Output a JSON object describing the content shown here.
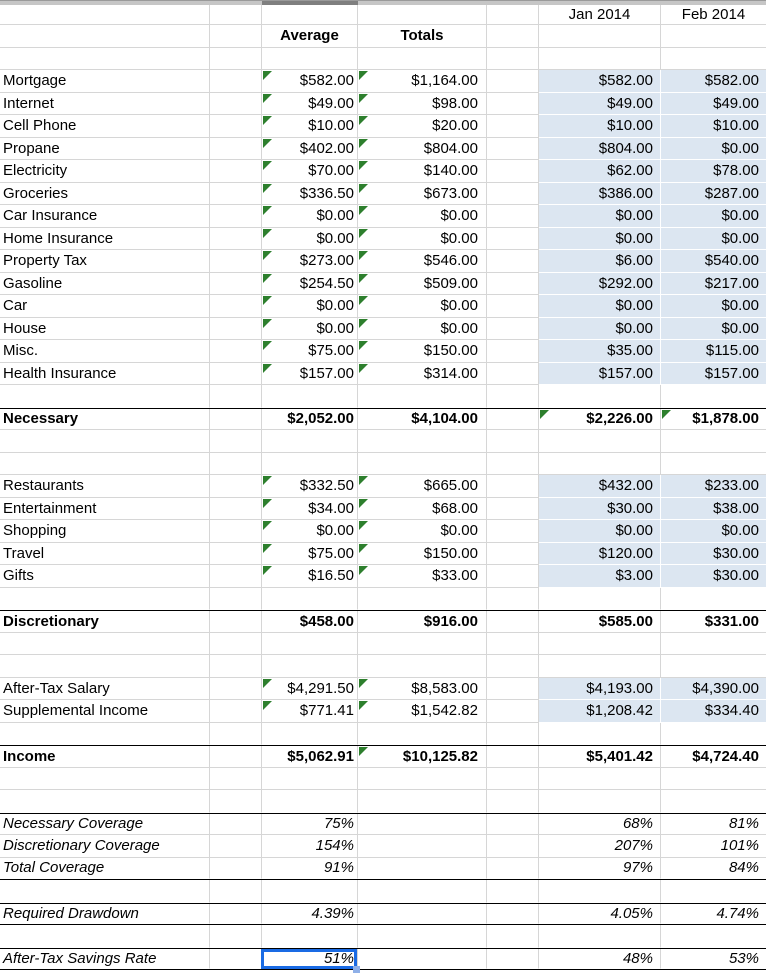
{
  "colors": {
    "grid_line": "#d6d6d6",
    "blue_fill": "#dce6f1",
    "blue_fill_grid": "#ffffff",
    "flag_green": "#2d7f2d",
    "selection_blue": "#1a6be4",
    "fill_handle_blue": "#8fb0e8",
    "header_strip": "#c6c6c6",
    "header_strip_selected": "#7f7f7f",
    "section_border": "#000000",
    "text": "#000000"
  },
  "column_headers": {
    "average": "Average",
    "totals": "Totals",
    "jan": "Jan 2014",
    "feb": "Feb 2014"
  },
  "rows": [
    {
      "id": "month-headers",
      "type": "months-header",
      "cells": {
        "jan": "Jan 2014",
        "feb": "Feb 2014"
      }
    },
    {
      "id": "column-headers",
      "type": "cols-header",
      "cells": {
        "average": "Average",
        "totals": "Totals"
      }
    },
    {
      "id": "blank-1",
      "type": "blank"
    },
    {
      "id": "mortgage",
      "type": "item",
      "cells": {
        "label": "Mortgage",
        "average": "$582.00",
        "totals": "$1,164.00",
        "jan": "$582.00",
        "feb": "$582.00"
      },
      "tri": [
        "average",
        "totals"
      ],
      "blue": true
    },
    {
      "id": "internet",
      "type": "item",
      "cells": {
        "label": "Internet",
        "average": "$49.00",
        "totals": "$98.00",
        "jan": "$49.00",
        "feb": "$49.00"
      },
      "tri": [
        "average",
        "totals"
      ],
      "blue": true
    },
    {
      "id": "cell-phone",
      "type": "item",
      "cells": {
        "label": "Cell Phone",
        "average": "$10.00",
        "totals": "$20.00",
        "jan": "$10.00",
        "feb": "$10.00"
      },
      "tri": [
        "average",
        "totals"
      ],
      "blue": true
    },
    {
      "id": "propane",
      "type": "item",
      "cells": {
        "label": "Propane",
        "average": "$402.00",
        "totals": "$804.00",
        "jan": "$804.00",
        "feb": "$0.00"
      },
      "tri": [
        "average",
        "totals"
      ],
      "blue": true
    },
    {
      "id": "electricity",
      "type": "item",
      "cells": {
        "label": "Electricity",
        "average": "$70.00",
        "totals": "$140.00",
        "jan": "$62.00",
        "feb": "$78.00"
      },
      "tri": [
        "average",
        "totals"
      ],
      "blue": true
    },
    {
      "id": "groceries",
      "type": "item",
      "cells": {
        "label": "Groceries",
        "average": "$336.50",
        "totals": "$673.00",
        "jan": "$386.00",
        "feb": "$287.00"
      },
      "tri": [
        "average",
        "totals"
      ],
      "blue": true
    },
    {
      "id": "car-insurance",
      "type": "item",
      "cells": {
        "label": "Car Insurance",
        "average": "$0.00",
        "totals": "$0.00",
        "jan": "$0.00",
        "feb": "$0.00"
      },
      "tri": [
        "average",
        "totals"
      ],
      "blue": true
    },
    {
      "id": "home-insurance",
      "type": "item",
      "cells": {
        "label": "Home Insurance",
        "average": "$0.00",
        "totals": "$0.00",
        "jan": "$0.00",
        "feb": "$0.00"
      },
      "tri": [
        "average",
        "totals"
      ],
      "blue": true
    },
    {
      "id": "property-tax",
      "type": "item",
      "cells": {
        "label": "Property Tax",
        "average": "$273.00",
        "totals": "$546.00",
        "jan": "$6.00",
        "feb": "$540.00"
      },
      "tri": [
        "average",
        "totals"
      ],
      "blue": true
    },
    {
      "id": "gasoline",
      "type": "item",
      "cells": {
        "label": "Gasoline",
        "average": "$254.50",
        "totals": "$509.00",
        "jan": "$292.00",
        "feb": "$217.00"
      },
      "tri": [
        "average",
        "totals"
      ],
      "blue": true
    },
    {
      "id": "car",
      "type": "item",
      "cells": {
        "label": "Car",
        "average": "$0.00",
        "totals": "$0.00",
        "jan": "$0.00",
        "feb": "$0.00"
      },
      "tri": [
        "average",
        "totals"
      ],
      "blue": true
    },
    {
      "id": "house",
      "type": "item",
      "cells": {
        "label": "House",
        "average": "$0.00",
        "totals": "$0.00",
        "jan": "$0.00",
        "feb": "$0.00"
      },
      "tri": [
        "average",
        "totals"
      ],
      "blue": true
    },
    {
      "id": "misc",
      "type": "item",
      "cells": {
        "label": "Misc.",
        "average": "$75.00",
        "totals": "$150.00",
        "jan": "$35.00",
        "feb": "$115.00"
      },
      "tri": [
        "average",
        "totals"
      ],
      "blue": true
    },
    {
      "id": "health-insurance",
      "type": "item",
      "cells": {
        "label": "Health Insurance",
        "average": "$157.00",
        "totals": "$314.00",
        "jan": "$157.00",
        "feb": "$157.00"
      },
      "tri": [
        "average",
        "totals"
      ],
      "blue": true
    },
    {
      "id": "blank-2",
      "type": "blank"
    },
    {
      "id": "necessary",
      "type": "total",
      "cells": {
        "label": "Necessary",
        "average": "$2,052.00",
        "totals": "$4,104.00",
        "jan": "$2,226.00",
        "feb": "$1,878.00"
      },
      "tri": [
        "jan",
        "feb"
      ],
      "border_top": true
    },
    {
      "id": "blank-3",
      "type": "blank"
    },
    {
      "id": "blank-4",
      "type": "blank"
    },
    {
      "id": "restaurants",
      "type": "item",
      "cells": {
        "label": "Restaurants",
        "average": "$332.50",
        "totals": "$665.00",
        "jan": "$432.00",
        "feb": "$233.00"
      },
      "tri": [
        "average",
        "totals"
      ],
      "blue": true
    },
    {
      "id": "entertainment",
      "type": "item",
      "cells": {
        "label": "Entertainment",
        "average": "$34.00",
        "totals": "$68.00",
        "jan": "$30.00",
        "feb": "$38.00"
      },
      "tri": [
        "average",
        "totals"
      ],
      "blue": true
    },
    {
      "id": "shopping",
      "type": "item",
      "cells": {
        "label": "Shopping",
        "average": "$0.00",
        "totals": "$0.00",
        "jan": "$0.00",
        "feb": "$0.00"
      },
      "tri": [
        "average",
        "totals"
      ],
      "blue": true
    },
    {
      "id": "travel",
      "type": "item",
      "cells": {
        "label": "Travel",
        "average": "$75.00",
        "totals": "$150.00",
        "jan": "$120.00",
        "feb": "$30.00"
      },
      "tri": [
        "average",
        "totals"
      ],
      "blue": true
    },
    {
      "id": "gifts",
      "type": "item",
      "cells": {
        "label": "Gifts",
        "average": "$16.50",
        "totals": "$33.00",
        "jan": "$3.00",
        "feb": "$30.00"
      },
      "tri": [
        "average",
        "totals"
      ],
      "blue": true
    },
    {
      "id": "blank-5",
      "type": "blank"
    },
    {
      "id": "discretionary",
      "type": "total",
      "cells": {
        "label": "Discretionary",
        "average": "$458.00",
        "totals": "$916.00",
        "jan": "$585.00",
        "feb": "$331.00"
      },
      "border_top": true
    },
    {
      "id": "blank-6",
      "type": "blank"
    },
    {
      "id": "blank-7",
      "type": "blank"
    },
    {
      "id": "after-tax-salary",
      "type": "item",
      "cells": {
        "label": "After-Tax Salary",
        "average": "$4,291.50",
        "totals": "$8,583.00",
        "jan": "$4,193.00",
        "feb": "$4,390.00"
      },
      "tri": [
        "average",
        "totals"
      ],
      "blue": true
    },
    {
      "id": "supplemental-income",
      "type": "item",
      "cells": {
        "label": "Supplemental Income",
        "average": "$771.41",
        "totals": "$1,542.82",
        "jan": "$1,208.42",
        "feb": "$334.40"
      },
      "tri": [
        "average",
        "totals"
      ],
      "blue": true
    },
    {
      "id": "blank-8",
      "type": "blank"
    },
    {
      "id": "income",
      "type": "total",
      "cells": {
        "label": "Income",
        "average": "$5,062.91",
        "totals": "$10,125.82",
        "jan": "$5,401.42",
        "feb": "$4,724.40"
      },
      "tri": [
        "totals"
      ],
      "border_top": true
    },
    {
      "id": "blank-9",
      "type": "blank"
    },
    {
      "id": "blank-10",
      "type": "blank"
    },
    {
      "id": "necessary-coverage",
      "type": "metric",
      "cells": {
        "label": "Necessary Coverage",
        "average": "75%",
        "jan": "68%",
        "feb": "81%"
      },
      "border_top": true
    },
    {
      "id": "discretionary-coverage",
      "type": "metric",
      "cells": {
        "label": "Discretionary Coverage",
        "average": "154%",
        "jan": "207%",
        "feb": "101%"
      }
    },
    {
      "id": "total-coverage",
      "type": "metric",
      "cells": {
        "label": "Total Coverage",
        "average": "91%",
        "jan": "97%",
        "feb": "84%"
      },
      "border_bottom": true
    },
    {
      "id": "blank-11",
      "type": "blank"
    },
    {
      "id": "required-drawdown",
      "type": "metric",
      "cells": {
        "label": "Required Drawdown",
        "average": "4.39%",
        "jan": "4.05%",
        "feb": "4.74%"
      },
      "border_top": true,
      "border_bottom": true
    },
    {
      "id": "blank-12",
      "type": "blank"
    },
    {
      "id": "after-tax-savings-rate",
      "type": "metric",
      "cells": {
        "label": "After-Tax Savings Rate",
        "average": "51%",
        "jan": "48%",
        "feb": "53%"
      },
      "border_top": true,
      "border_bottom": true,
      "selected": "average"
    }
  ]
}
